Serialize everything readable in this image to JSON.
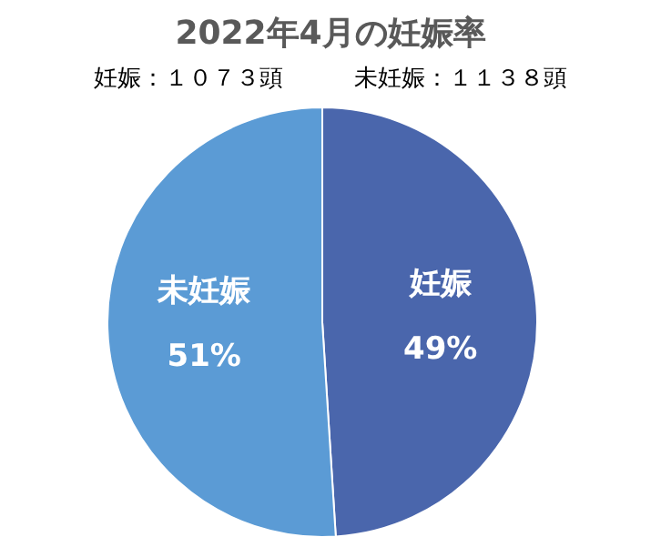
{
  "chart_data": {
    "type": "pie",
    "title": "2022年4月の妊娠率",
    "subtitle": "妊娠：１０７３頭　　　未妊娠：１１３８頭",
    "categories": [
      "妊娠",
      "未妊娠"
    ],
    "values": [
      49,
      51
    ],
    "value_labels": [
      "49%",
      "51%"
    ],
    "colors": [
      "#4a66ac",
      "#5b9bd5"
    ]
  }
}
